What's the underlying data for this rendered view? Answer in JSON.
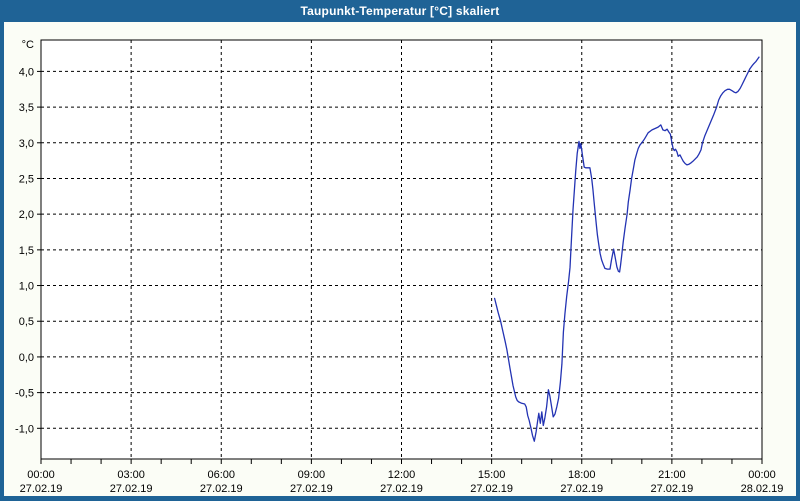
{
  "window": {
    "title": "Taupunkt-Temperatur [°C] skaliert"
  },
  "colors": {
    "titlebar_bg": "#1f6396",
    "titlebar_text": "#ffffff",
    "frame": "#1f6396",
    "page_bg": "#fbfdf6",
    "plot_bg": "#ffffff",
    "grid": "#000000",
    "axis": "#000000",
    "line": "#2333b3"
  },
  "chart_data": {
    "type": "line",
    "title": "Taupunkt-Temperatur [°C] skaliert",
    "ylabel": "°C",
    "xlabel": "",
    "grid": true,
    "legend": "none",
    "ylim": [
      -1.43,
      4.44
    ],
    "xlim_hours": [
      0,
      24
    ],
    "minor_xtick_hours": 1,
    "yticks": [
      {
        "value": 4.0,
        "label": "4,0"
      },
      {
        "value": 3.5,
        "label": "3,5"
      },
      {
        "value": 3.0,
        "label": "3,0"
      },
      {
        "value": 2.5,
        "label": "2,5"
      },
      {
        "value": 2.0,
        "label": "2,0"
      },
      {
        "value": 1.5,
        "label": "1,5"
      },
      {
        "value": 1.0,
        "label": "1,0"
      },
      {
        "value": 0.5,
        "label": "0,5"
      },
      {
        "value": 0.0,
        "label": "0,0"
      },
      {
        "value": -0.5,
        "label": "-0,5"
      },
      {
        "value": -1.0,
        "label": "-1,0"
      }
    ],
    "xticks": [
      {
        "hour": 0,
        "time": "00:00",
        "date": "27.02.19"
      },
      {
        "hour": 3,
        "time": "03:00",
        "date": "27.02.19"
      },
      {
        "hour": 6,
        "time": "06:00",
        "date": "27.02.19"
      },
      {
        "hour": 9,
        "time": "09:00",
        "date": "27.02.19"
      },
      {
        "hour": 12,
        "time": "12:00",
        "date": "27.02.19"
      },
      {
        "hour": 15,
        "time": "15:00",
        "date": "27.02.19"
      },
      {
        "hour": 18,
        "time": "18:00",
        "date": "27.02.19"
      },
      {
        "hour": 21,
        "time": "21:00",
        "date": "27.02.19"
      },
      {
        "hour": 24,
        "time": "00:00",
        "date": "28.02.19"
      }
    ],
    "series": [
      {
        "name": "Taupunkt-Temperatur",
        "color": "#2333b3",
        "points": [
          [
            15.1,
            0.82
          ],
          [
            15.22,
            0.62
          ],
          [
            15.3,
            0.5
          ],
          [
            15.38,
            0.35
          ],
          [
            15.45,
            0.22
          ],
          [
            15.51,
            0.1
          ],
          [
            15.55,
            0.0
          ],
          [
            15.61,
            -0.16
          ],
          [
            15.66,
            -0.28
          ],
          [
            15.71,
            -0.4
          ],
          [
            15.75,
            -0.47
          ],
          [
            15.8,
            -0.56
          ],
          [
            15.85,
            -0.61
          ],
          [
            15.9,
            -0.63
          ],
          [
            16.0,
            -0.65
          ],
          [
            16.1,
            -0.66
          ],
          [
            16.15,
            -0.7
          ],
          [
            16.2,
            -0.82
          ],
          [
            16.25,
            -0.89
          ],
          [
            16.31,
            -1.0
          ],
          [
            16.36,
            -1.1
          ],
          [
            16.42,
            -1.18
          ],
          [
            16.48,
            -1.05
          ],
          [
            16.53,
            -0.9
          ],
          [
            16.57,
            -0.79
          ],
          [
            16.62,
            -0.93
          ],
          [
            16.67,
            -0.77
          ],
          [
            16.72,
            -0.96
          ],
          [
            16.77,
            -0.86
          ],
          [
            16.83,
            -0.7
          ],
          [
            16.89,
            -0.46
          ],
          [
            16.94,
            -0.55
          ],
          [
            16.99,
            -0.68
          ],
          [
            17.05,
            -0.84
          ],
          [
            17.11,
            -0.8
          ],
          [
            17.17,
            -0.7
          ],
          [
            17.23,
            -0.58
          ],
          [
            17.29,
            -0.35
          ],
          [
            17.34,
            -0.1
          ],
          [
            17.39,
            0.35
          ],
          [
            17.44,
            0.6
          ],
          [
            17.5,
            0.85
          ],
          [
            17.56,
            1.05
          ],
          [
            17.61,
            1.25
          ],
          [
            17.66,
            1.66
          ],
          [
            17.71,
            2.06
          ],
          [
            17.75,
            2.3
          ],
          [
            17.8,
            2.6
          ],
          [
            17.85,
            2.85
          ],
          [
            17.91,
            3.02
          ],
          [
            17.94,
            2.92
          ],
          [
            17.97,
            2.99
          ],
          [
            18.02,
            2.83
          ],
          [
            18.08,
            2.66
          ],
          [
            18.13,
            2.65
          ],
          [
            18.27,
            2.65
          ],
          [
            18.33,
            2.5
          ],
          [
            18.37,
            2.35
          ],
          [
            18.41,
            2.17
          ],
          [
            18.45,
            2.0
          ],
          [
            18.48,
            1.87
          ],
          [
            18.52,
            1.71
          ],
          [
            18.56,
            1.59
          ],
          [
            18.61,
            1.45
          ],
          [
            18.66,
            1.36
          ],
          [
            18.72,
            1.29
          ],
          [
            18.77,
            1.24
          ],
          [
            18.85,
            1.23
          ],
          [
            18.94,
            1.23
          ],
          [
            18.99,
            1.36
          ],
          [
            19.06,
            1.51
          ],
          [
            19.11,
            1.4
          ],
          [
            19.17,
            1.26
          ],
          [
            19.22,
            1.2
          ],
          [
            19.26,
            1.19
          ],
          [
            19.29,
            1.28
          ],
          [
            19.33,
            1.42
          ],
          [
            19.38,
            1.61
          ],
          [
            19.44,
            1.8
          ],
          [
            19.51,
            2.0
          ],
          [
            19.55,
            2.17
          ],
          [
            19.61,
            2.34
          ],
          [
            19.66,
            2.5
          ],
          [
            19.72,
            2.64
          ],
          [
            19.77,
            2.76
          ],
          [
            19.83,
            2.85
          ],
          [
            19.88,
            2.92
          ],
          [
            19.94,
            2.97
          ],
          [
            20.0,
            3.0
          ],
          [
            20.07,
            3.04
          ],
          [
            20.14,
            3.09
          ],
          [
            20.21,
            3.14
          ],
          [
            20.34,
            3.18
          ],
          [
            20.44,
            3.2
          ],
          [
            20.54,
            3.22
          ],
          [
            20.63,
            3.25
          ],
          [
            20.7,
            3.18
          ],
          [
            20.77,
            3.17
          ],
          [
            20.84,
            3.19
          ],
          [
            20.9,
            3.15
          ],
          [
            20.95,
            3.12
          ],
          [
            21.0,
            3.0
          ],
          [
            21.04,
            2.92
          ],
          [
            21.08,
            2.89
          ],
          [
            21.12,
            2.91
          ],
          [
            21.17,
            2.87
          ],
          [
            21.21,
            2.81
          ],
          [
            21.27,
            2.83
          ],
          [
            21.33,
            2.78
          ],
          [
            21.38,
            2.74
          ],
          [
            21.44,
            2.71
          ],
          [
            21.5,
            2.69
          ],
          [
            21.57,
            2.7
          ],
          [
            21.64,
            2.72
          ],
          [
            21.7,
            2.74
          ],
          [
            21.77,
            2.77
          ],
          [
            21.84,
            2.8
          ],
          [
            21.9,
            2.84
          ],
          [
            21.97,
            2.9
          ],
          [
            22.02,
            3.0
          ],
          [
            22.1,
            3.1
          ],
          [
            22.2,
            3.2
          ],
          [
            22.3,
            3.3
          ],
          [
            22.4,
            3.4
          ],
          [
            22.49,
            3.5
          ],
          [
            22.56,
            3.6
          ],
          [
            22.63,
            3.66
          ],
          [
            22.7,
            3.7
          ],
          [
            22.77,
            3.73
          ],
          [
            22.85,
            3.75
          ],
          [
            22.92,
            3.75
          ],
          [
            23.0,
            3.73
          ],
          [
            23.07,
            3.71
          ],
          [
            23.13,
            3.7
          ],
          [
            23.2,
            3.72
          ],
          [
            23.27,
            3.76
          ],
          [
            23.33,
            3.81
          ],
          [
            23.4,
            3.87
          ],
          [
            23.47,
            3.93
          ],
          [
            23.54,
            3.99
          ],
          [
            23.6,
            4.04
          ],
          [
            23.67,
            4.08
          ],
          [
            23.73,
            4.11
          ],
          [
            23.8,
            4.14
          ],
          [
            23.85,
            4.17
          ],
          [
            23.9,
            4.2
          ]
        ]
      }
    ]
  }
}
